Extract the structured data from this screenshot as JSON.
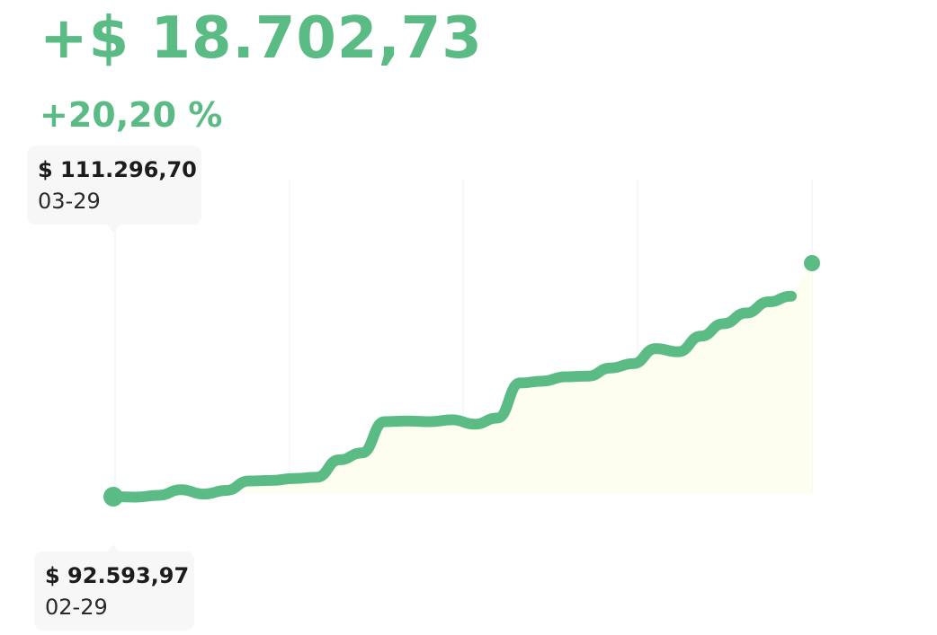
{
  "header": {
    "gain": "+$ 18.702,73",
    "percent": "+20,20 %"
  },
  "tooltips": {
    "high": {
      "value": "$ 111.296,70",
      "date": "03-29"
    },
    "low": {
      "value": "$ 92.593,97",
      "date": "02-29"
    }
  },
  "colors": {
    "line": "#5bbb84",
    "area": "#fdfdf0",
    "grid": "#f1f1f3",
    "tooltip_bg": "#f7f7f8"
  },
  "chart_data": {
    "type": "line",
    "title": "",
    "xlabel": "",
    "ylabel": "",
    "x_range": [
      "02-29",
      "03-29"
    ],
    "ylim": [
      92000,
      112000
    ],
    "grid": "vertical",
    "series": [
      {
        "values": [
          92593.97,
          92560,
          92700,
          93150,
          92800,
          93100,
          93850,
          93900,
          94050,
          94150,
          95550,
          96100,
          98600,
          98650,
          98600,
          98750,
          98400,
          98900,
          101700,
          101850,
          102200,
          102250,
          102900,
          103250,
          104450,
          104200,
          105450,
          106450,
          107300,
          108200,
          108650,
          111296.7
        ]
      }
    ],
    "markers": [
      {
        "point": "start",
        "value": 92593.97,
        "date": "02-29"
      },
      {
        "point": "end",
        "value": 111296.7,
        "date": "03-29"
      }
    ]
  }
}
